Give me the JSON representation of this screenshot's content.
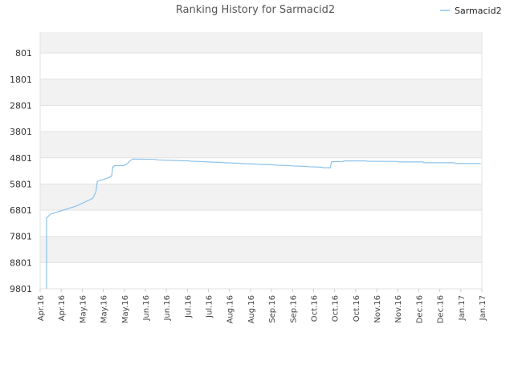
{
  "chart_data": {
    "type": "line",
    "title": "Ranking History for Sarmacid2",
    "xlabel": "",
    "ylabel": "",
    "y_inverted": true,
    "ylim": [
      9801,
      0
    ],
    "yticks": [
      "801",
      "1801",
      "2801",
      "3801",
      "4801",
      "5801",
      "6801",
      "7801",
      "8801",
      "9801"
    ],
    "xticks": [
      "Apr.16",
      "Apr.16",
      "May.16",
      "May.16",
      "May.16",
      "Jun.16",
      "Jun.16",
      "Jul.16",
      "Jul.16",
      "Aug.16",
      "Aug.16",
      "Sep.16",
      "Sep.16",
      "Oct.16",
      "Oct.16",
      "Oct.16",
      "Nov.16",
      "Nov.16",
      "Dec.16",
      "Dec.16",
      "Jan.17",
      "Jan.17"
    ],
    "grid": true,
    "legend": {
      "position": "top-right"
    },
    "colors": {
      "line": "#8ec3ea",
      "band_odd": "#f2f2f2",
      "band_even": "#ffffff",
      "grid": "#e2e2e2"
    },
    "series": [
      {
        "name": "Sarmacid2",
        "x": [
          0.3,
          0.3,
          0.5,
          1.1,
          1.7,
          2.5,
          2.65,
          2.7,
          2.72,
          3.3,
          3.35,
          3.4,
          3.45,
          3.5,
          3.52,
          4.0,
          4.05,
          4.1,
          4.3,
          4.35,
          4.4,
          4.45,
          5.5,
          5.55,
          6.3,
          6.35,
          7.1,
          7.15,
          7.9,
          7.95,
          8.7,
          8.75,
          9.5,
          9.55,
          10.3,
          10.35,
          11.1,
          11.15,
          11.9,
          11.95,
          12.7,
          12.75,
          13.4,
          13.45,
          13.8,
          13.85,
          14.4,
          14.45,
          15.5,
          15.55,
          17.0,
          17.05,
          18.2,
          18.25,
          19.7,
          19.75,
          20.95
        ],
        "y": [
          9801,
          7100,
          6950,
          6800,
          6650,
          6350,
          6100,
          5800,
          5700,
          5550,
          5500,
          5500,
          5150,
          5150,
          5100,
          5100,
          5050,
          5050,
          4900,
          4880,
          4850,
          4850,
          4860,
          4880,
          4900,
          4900,
          4920,
          4930,
          4950,
          4960,
          4980,
          4990,
          5010,
          5020,
          5040,
          5050,
          5070,
          5080,
          5100,
          5110,
          5130,
          5140,
          5160,
          5180,
          5180,
          4950,
          4940,
          4920,
          4920,
          4930,
          4940,
          4960,
          4960,
          4990,
          4990,
          5020,
          5020
        ]
      }
    ]
  }
}
